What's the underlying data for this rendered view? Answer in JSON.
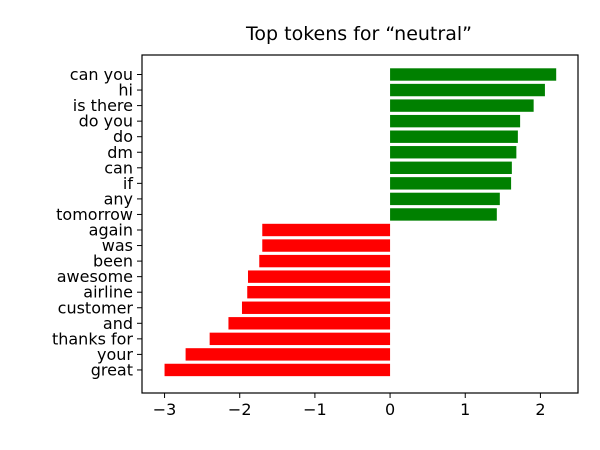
{
  "chart_data": {
    "type": "bar",
    "orientation": "horizontal",
    "title": "Top tokens for “neutral”",
    "xlabel": "",
    "ylabel": "",
    "xlim": [
      -3.3,
      2.5
    ],
    "xticks": [
      -3,
      -2,
      -1,
      0,
      1,
      2
    ],
    "xtick_labels": [
      "−3",
      "−2",
      "−1",
      "0",
      "1",
      "2"
    ],
    "grid": false,
    "colors": {
      "positive": "#008000",
      "negative": "#ff0000"
    },
    "categories": [
      "can you",
      "hi",
      "is there",
      "do you",
      "do",
      "dm",
      "can",
      "if",
      "any",
      "tomorrow",
      "again",
      "was",
      "been",
      "awesome",
      "airline",
      "customer",
      "and",
      "thanks for",
      "your",
      "great"
    ],
    "values": [
      2.21,
      2.06,
      1.91,
      1.73,
      1.7,
      1.68,
      1.62,
      1.61,
      1.46,
      1.42,
      -1.7,
      -1.7,
      -1.74,
      -1.89,
      -1.9,
      -1.97,
      -2.15,
      -2.4,
      -2.72,
      -3.0
    ]
  }
}
